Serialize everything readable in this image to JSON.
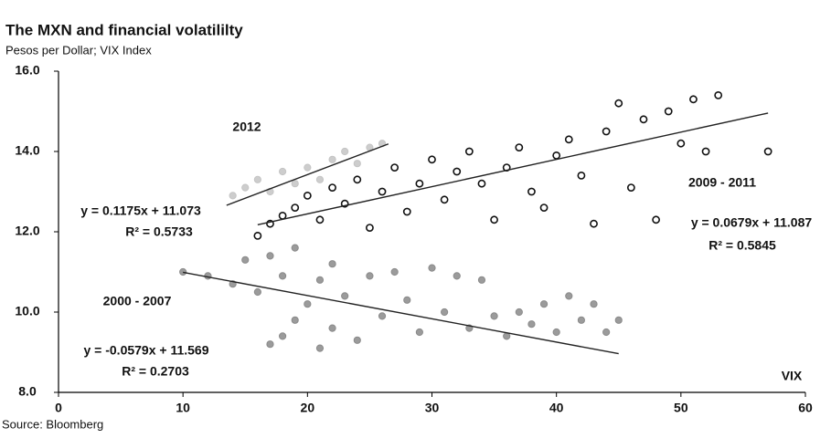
{
  "chart_data": {
    "type": "scatter",
    "title": "The MXN and financial volatililty",
    "subtitle": "Pesos  per Dollar; VIX Index",
    "source": "Source: Bloomberg",
    "xlabel": "VIX",
    "xlim": [
      0,
      60
    ],
    "xticks": [
      0,
      10,
      20,
      30,
      40,
      50,
      60
    ],
    "ylim": [
      8,
      16
    ],
    "yticks": [
      {
        "value": 8,
        "label": "8.0"
      },
      {
        "value": 10,
        "label": "10.0"
      },
      {
        "value": 12,
        "label": "12.0"
      },
      {
        "value": 14,
        "label": "14.0"
      },
      {
        "value": 16,
        "label": "16.0"
      }
    ],
    "series": [
      {
        "name": "2000 - 2007",
        "color": "#8a8a8a",
        "filled": true,
        "equation": "y = -0.0579x + 11.569",
        "r2": "R² = 0.2703",
        "slope": -0.0579,
        "intercept": 11.569,
        "fit_range": [
          10,
          45
        ],
        "x": [
          10,
          12,
          14,
          15,
          16,
          17,
          17,
          18,
          18,
          19,
          19,
          20,
          21,
          21,
          22,
          22,
          23,
          24,
          25,
          26,
          27,
          28,
          29,
          30,
          31,
          32,
          33,
          34,
          35,
          36,
          37,
          38,
          39,
          40,
          41,
          42,
          43,
          44,
          45
        ],
        "y": [
          11.0,
          10.9,
          10.7,
          11.3,
          10.5,
          9.2,
          11.4,
          9.4,
          10.9,
          9.8,
          11.6,
          10.2,
          9.1,
          10.8,
          9.6,
          11.2,
          10.4,
          9.3,
          10.9,
          9.9,
          11.0,
          10.3,
          9.5,
          11.1,
          10.0,
          10.9,
          9.6,
          10.8,
          9.9,
          9.4,
          10.0,
          9.7,
          10.2,
          9.5,
          10.4,
          9.8,
          10.2,
          9.5,
          9.8
        ]
      },
      {
        "name": "2009 - 2011",
        "color": "#111111",
        "filled": false,
        "equation": "y = 0.0679x + 11.087",
        "r2": "R² = 0.5845",
        "slope": 0.0679,
        "intercept": 11.087,
        "fit_range": [
          16,
          57
        ],
        "x": [
          16,
          17,
          18,
          19,
          20,
          21,
          22,
          23,
          24,
          25,
          26,
          27,
          28,
          29,
          30,
          31,
          32,
          33,
          34,
          35,
          36,
          37,
          38,
          39,
          40,
          41,
          42,
          43,
          44,
          45,
          46,
          47,
          48,
          49,
          50,
          51,
          52,
          53,
          57
        ],
        "y": [
          11.9,
          12.2,
          12.4,
          12.6,
          12.9,
          12.3,
          13.1,
          12.7,
          13.3,
          12.1,
          13.0,
          13.6,
          12.5,
          13.2,
          13.8,
          12.8,
          13.5,
          14.0,
          13.2,
          12.3,
          13.6,
          14.1,
          13.0,
          12.6,
          13.9,
          14.3,
          13.4,
          12.2,
          14.5,
          15.2,
          13.1,
          14.8,
          12.3,
          15.0,
          14.2,
          15.3,
          14.0,
          15.4,
          14.0
        ]
      },
      {
        "name": "2012",
        "color": "#c4c4c4",
        "filled": true,
        "equation": "y = 0.1175x + 11.073",
        "r2": "R² = 0.5733",
        "slope": 0.1175,
        "intercept": 11.073,
        "fit_range": [
          13.5,
          26.5
        ],
        "x": [
          14,
          15,
          16,
          17,
          18,
          19,
          20,
          21,
          22,
          23,
          24,
          25,
          26
        ],
        "y": [
          12.9,
          13.1,
          13.3,
          13.0,
          13.5,
          13.2,
          13.6,
          13.3,
          13.8,
          14.0,
          13.7,
          14.1,
          14.2
        ]
      }
    ]
  }
}
